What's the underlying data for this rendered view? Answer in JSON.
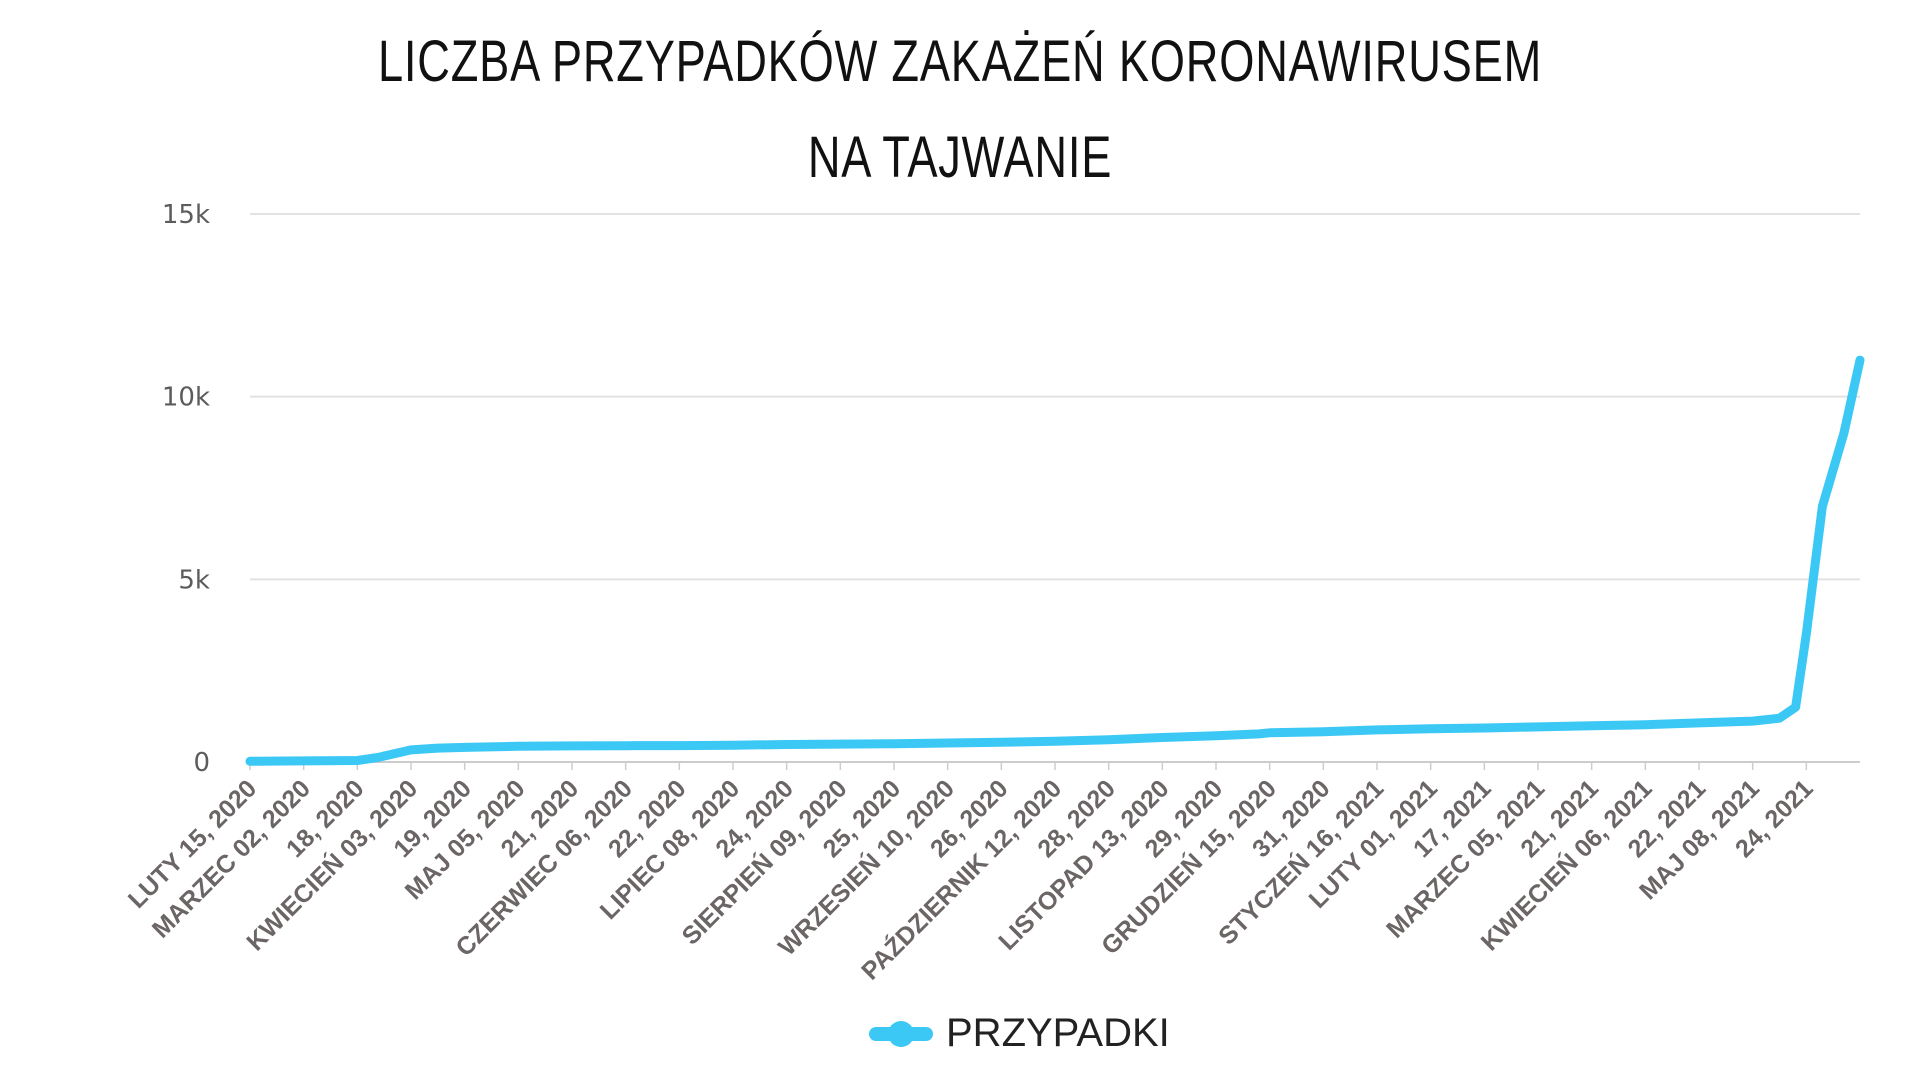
{
  "chart_data": {
    "type": "line",
    "title": "LICZBA PRZYPADKÓW ZAKAŻEŃ KORONAWIRUSEM",
    "subtitle": "NA TAJWANIE",
    "xlabel": "",
    "ylabel": "",
    "ylim": [
      0,
      15000
    ],
    "yticks": [
      0,
      5000,
      10000,
      15000
    ],
    "ytick_labels": [
      "0",
      "5k",
      "10k",
      "15k"
    ],
    "grid": true,
    "legend_position": "bottom-center",
    "x_tick_labels": [
      "LUTY 15, 2020",
      "MARZEC 02, 2020",
      "18, 2020",
      "KWIECIEŃ 03, 2020",
      "19, 2020",
      "MAJ 05, 2020",
      "21, 2020",
      "CZERWIEC 06, 2020",
      "22, 2020",
      "LIPIEC 08, 2020",
      "24, 2020",
      "SIERPIEŃ 09, 2020",
      "25, 2020",
      "WRZESIEŃ 10, 2020",
      "26, 2020",
      "PAŹDZIERNIK 12, 2020",
      "28, 2020",
      "LISTOPAD 13, 2020",
      "29, 2020",
      "GRUDZIEŃ 15, 2020",
      "31, 2020",
      "STYCZEŃ 16, 2021",
      "LUTY 01, 2021",
      "17, 2021",
      "MARZEC 05, 2021",
      "21, 2021",
      "KWIECIEŃ 06, 2021",
      "22, 2021",
      "MAJ 08, 2021",
      "24, 2021"
    ],
    "series": [
      {
        "name": "PRZYPADKI",
        "color": "#3cc8f5",
        "x": [
          0,
          1,
          2,
          2.4,
          3,
          3.5,
          4,
          5,
          6,
          7,
          8,
          9,
          10,
          11,
          12,
          13,
          14,
          15,
          16,
          17,
          18,
          18.8,
          19,
          20,
          21,
          22,
          23,
          24,
          25,
          26,
          27,
          28,
          28.5,
          28.8,
          29,
          29.3,
          29.7,
          30
        ],
        "values": [
          18,
          30,
          40,
          130,
          330,
          380,
          400,
          430,
          440,
          445,
          450,
          460,
          480,
          490,
          500,
          520,
          540,
          570,
          610,
          670,
          720,
          770,
          800,
          830,
          880,
          910,
          930,
          960,
          990,
          1020,
          1070,
          1120,
          1200,
          1500,
          3500,
          7000,
          9000,
          11000
        ]
      }
    ]
  },
  "colors": {
    "line": "#3cc8f5",
    "grid": "#e2e2e2",
    "axis": "#cccccc"
  }
}
